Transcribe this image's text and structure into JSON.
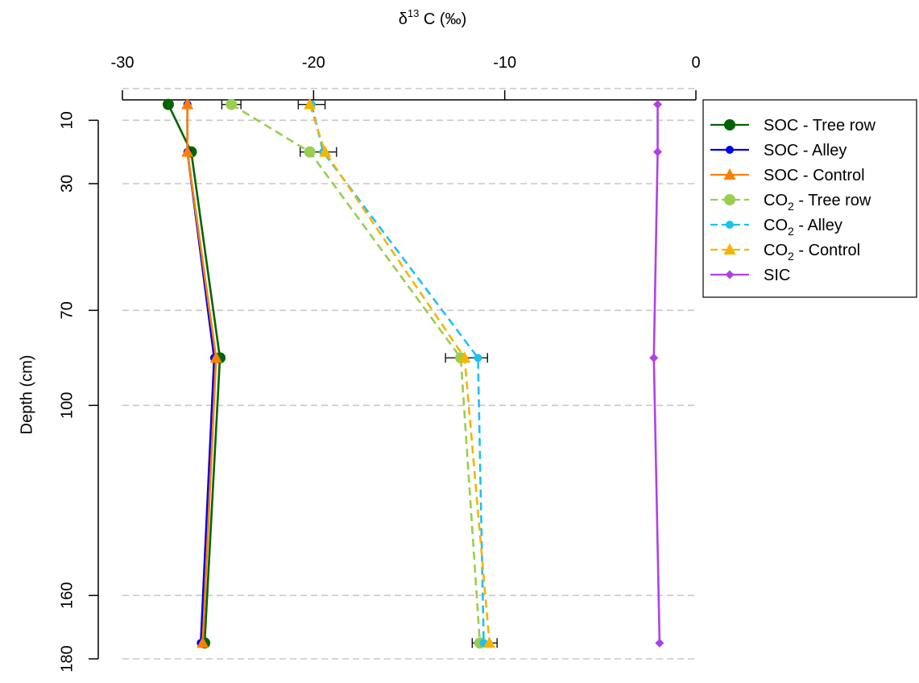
{
  "chart_data": {
    "type": "line",
    "title": "",
    "xlabel": "δ13 C (‰)",
    "xlabel_parts": {
      "delta": "δ",
      "superscript": "13",
      "rest": " C (‰)"
    },
    "ylabel": "Depth (cm)",
    "x_axis_position": "top",
    "y_axis_inverted": true,
    "xlim": [
      -30,
      0
    ],
    "ylim": [
      180,
      0
    ],
    "x_ticks": [
      -30,
      -20,
      -10,
      0
    ],
    "x_tick_labels": [
      "-30",
      "-20",
      "-10",
      "0"
    ],
    "y_ticks": [
      10,
      30,
      70,
      100,
      160,
      180
    ],
    "y_tick_labels": [
      "10",
      "30",
      "70",
      "100",
      "160",
      "180"
    ],
    "gridlines_y": [
      0,
      10,
      30,
      70,
      100,
      160,
      180
    ],
    "grid": "horizontal dashed",
    "legend_position": "top-right",
    "series": [
      {
        "name": "SOC - Tree row",
        "label_base": "SOC - Tree row",
        "sub": "",
        "label_rest": "",
        "color": "#006400",
        "dash": false,
        "marker": "circle",
        "points": [
          {
            "x": -27.6,
            "y": 5
          },
          {
            "x": -26.4,
            "y": 20
          },
          {
            "x": -24.9,
            "y": 85
          },
          {
            "x": -25.7,
            "y": 175
          }
        ]
      },
      {
        "name": "SOC - Alley",
        "label_base": "SOC - Alley",
        "sub": "",
        "label_rest": "",
        "color": "#0000ee",
        "dash": false,
        "marker": "small-circle",
        "points": [
          {
            "x": -26.6,
            "y": 5
          },
          {
            "x": -26.6,
            "y": 20
          },
          {
            "x": -25.2,
            "y": 85
          },
          {
            "x": -25.9,
            "y": 175
          }
        ]
      },
      {
        "name": "SOC - Control",
        "label_base": "SOC - Control",
        "sub": "",
        "label_rest": "",
        "color": "#ff7f00",
        "dash": false,
        "marker": "triangle",
        "points": [
          {
            "x": -26.6,
            "y": 5
          },
          {
            "x": -26.6,
            "y": 20
          },
          {
            "x": -25.1,
            "y": 85
          },
          {
            "x": -25.8,
            "y": 175
          }
        ]
      },
      {
        "name": "CO2 - Tree row",
        "label_base": "CO",
        "sub": "2",
        "label_rest": " - Tree row",
        "color": "#9acd50",
        "dash": true,
        "marker": "circle",
        "points": [
          {
            "x": -24.3,
            "y": 5
          },
          {
            "x": -20.2,
            "y": 20
          },
          {
            "x": -12.3,
            "y": 85
          },
          {
            "x": -11.3,
            "y": 175
          }
        ]
      },
      {
        "name": "CO2 - Alley",
        "label_base": "CO",
        "sub": "2",
        "label_rest": " - Alley",
        "color": "#1ec0f0",
        "dash": true,
        "marker": "small-circle",
        "points": [
          {
            "x": -20.1,
            "y": 5
          },
          {
            "x": -19.5,
            "y": 20
          },
          {
            "x": -11.4,
            "y": 85
          },
          {
            "x": -11.1,
            "y": 175
          }
        ]
      },
      {
        "name": "CO2 - Control",
        "label_base": "CO",
        "sub": "2",
        "label_rest": " - Control",
        "color": "#f5b400",
        "dash": true,
        "marker": "triangle",
        "points": [
          {
            "x": -20.2,
            "y": 5
          },
          {
            "x": -19.4,
            "y": 20
          },
          {
            "x": -12.1,
            "y": 85
          },
          {
            "x": -10.8,
            "y": 175
          }
        ]
      },
      {
        "name": "SIC",
        "label_base": "SIC",
        "sub": "",
        "label_rest": "",
        "color": "#b040e8",
        "dash": false,
        "marker": "diamond",
        "points": [
          {
            "x": -2.0,
            "y": 5
          },
          {
            "x": -2.0,
            "y": 20
          },
          {
            "x": -2.2,
            "y": 85
          },
          {
            "x": -1.9,
            "y": 175
          }
        ]
      }
    ],
    "error_bars": [
      {
        "y": 5,
        "x_low": -24.8,
        "x_high": -23.8
      },
      {
        "y": 5,
        "x_low": -20.8,
        "x_high": -19.4
      },
      {
        "y": 20,
        "x_low": -20.7,
        "x_high": -18.8
      },
      {
        "y": 85,
        "x_low": -13.1,
        "x_high": -10.9
      },
      {
        "y": 175,
        "x_low": -11.7,
        "x_high": -10.4
      }
    ]
  }
}
